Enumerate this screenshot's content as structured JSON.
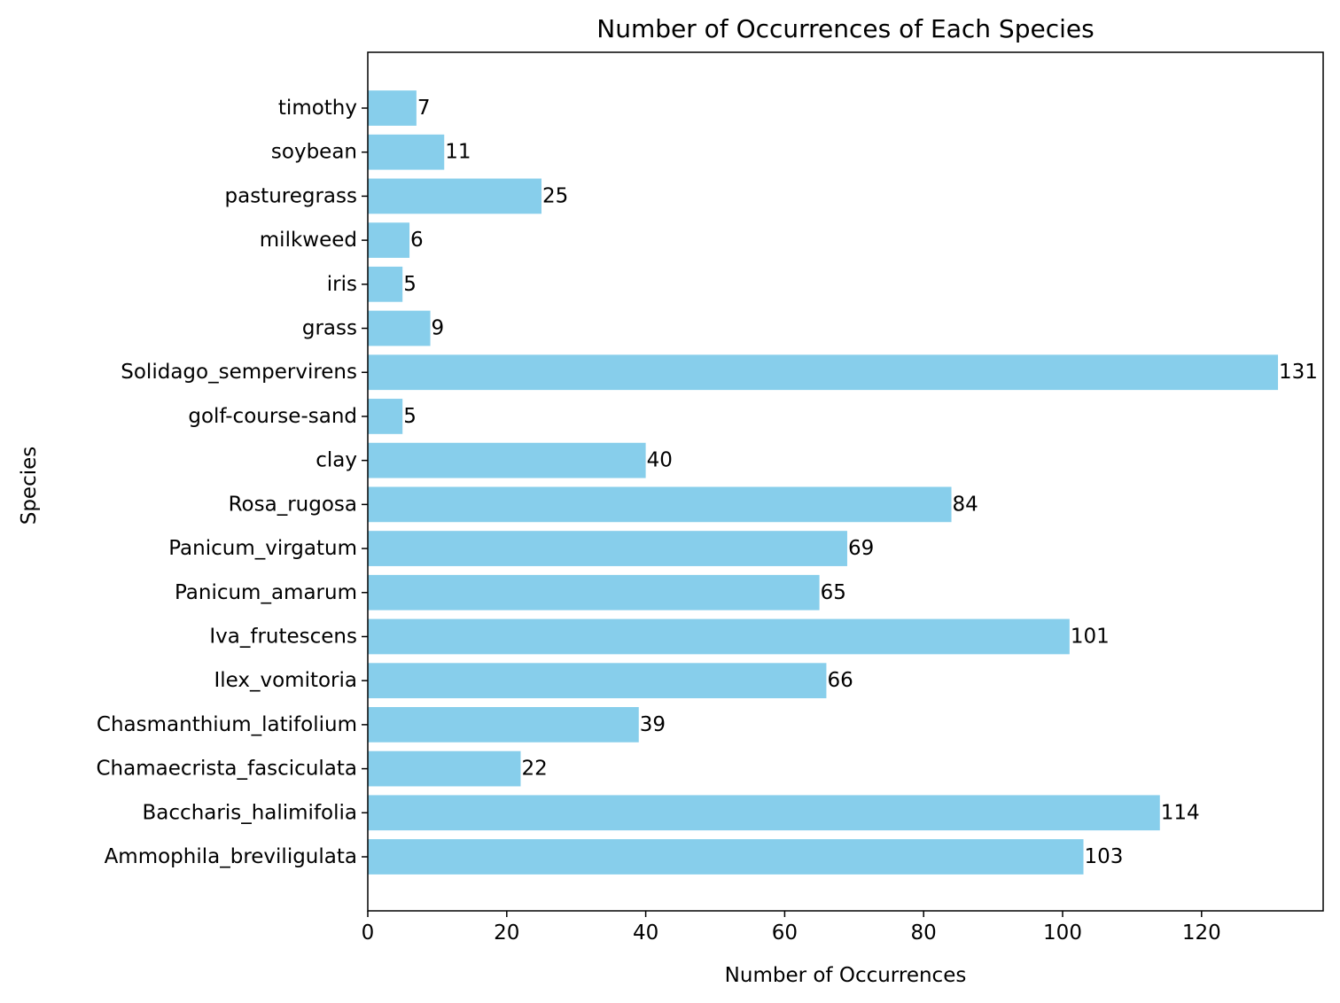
{
  "chart_data": {
    "type": "bar",
    "orientation": "horizontal",
    "title": "Number of Occurrences of Each Species",
    "xlabel": "Number of Occurrences",
    "ylabel": "Species",
    "xlim": [
      0,
      137.5
    ],
    "xticks": [
      0,
      20,
      40,
      60,
      80,
      100,
      120
    ],
    "grid": false,
    "bar_color": "#87CEEB",
    "categories": [
      "Ammophila_breviligulata",
      "Baccharis_halimifolia",
      "Chamaecrista_fasciculata",
      "Chasmanthium_latifolium",
      "Ilex_vomitoria",
      "Iva_frutescens",
      "Panicum_amarum",
      "Panicum_virgatum",
      "Rosa_rugosa",
      "clay",
      "golf-course-sand",
      "Solidago_sempervirens",
      "grass",
      "iris",
      "milkweed",
      "pasturegrass",
      "soybean",
      "timothy"
    ],
    "values": [
      103,
      114,
      22,
      39,
      66,
      101,
      65,
      69,
      84,
      40,
      5,
      131,
      9,
      5,
      6,
      25,
      11,
      7
    ]
  }
}
